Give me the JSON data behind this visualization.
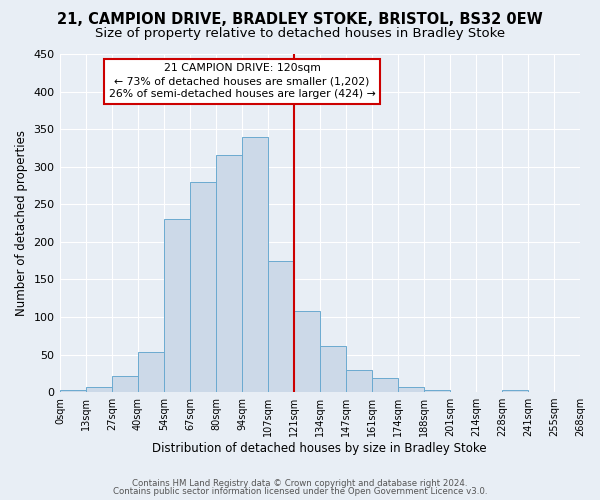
{
  "title": "21, CAMPION DRIVE, BRADLEY STOKE, BRISTOL, BS32 0EW",
  "subtitle": "Size of property relative to detached houses in Bradley Stoke",
  "xlabel": "Distribution of detached houses by size in Bradley Stoke",
  "ylabel": "Number of detached properties",
  "bin_labels": [
    "0sqm",
    "13sqm",
    "27sqm",
    "40sqm",
    "54sqm",
    "67sqm",
    "80sqm",
    "94sqm",
    "107sqm",
    "121sqm",
    "134sqm",
    "147sqm",
    "161sqm",
    "174sqm",
    "188sqm",
    "201sqm",
    "214sqm",
    "228sqm",
    "241sqm",
    "255sqm",
    "268sqm"
  ],
  "bar_heights": [
    3,
    7,
    22,
    54,
    230,
    280,
    316,
    340,
    175,
    108,
    62,
    30,
    19,
    7,
    3,
    0,
    0,
    3,
    0,
    0
  ],
  "bar_facecolor": "#ccd9e8",
  "bar_edgecolor": "#6baad0",
  "marker_color": "#cc0000",
  "ylim": [
    0,
    450
  ],
  "annotation_title": "21 CAMPION DRIVE: 120sqm",
  "annotation_line1": "← 73% of detached houses are smaller (1,202)",
  "annotation_line2": "26% of semi-detached houses are larger (424) →",
  "annotation_box_edgecolor": "#cc0000",
  "footer1": "Contains HM Land Registry data © Crown copyright and database right 2024.",
  "footer2": "Contains public sector information licensed under the Open Government Licence v3.0.",
  "bg_color": "#e8eef5",
  "title_fontsize": 10.5,
  "subtitle_fontsize": 9.5,
  "marker_bin_index": 9
}
